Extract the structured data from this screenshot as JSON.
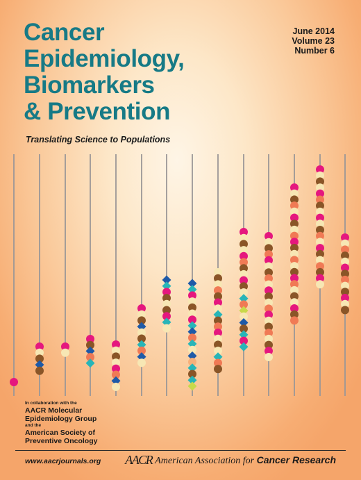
{
  "journal": {
    "title_lines": [
      "Cancer",
      "Epidemiology,",
      "Biomarkers",
      "& Prevention"
    ],
    "tagline": "Translating Science to Populations"
  },
  "issue": {
    "date": "June 2014",
    "volume": "Volume 23",
    "number": "Number 6"
  },
  "collaboration": {
    "intro": "In collaboration with the",
    "group1_line1": "AACR Molecular",
    "group1_line2": "Epidemiology Group",
    "connector": "and the",
    "group2_line1": "American Society of",
    "group2_line2": "Preventive Oncology"
  },
  "footer": {
    "website": "www.aacrjournals.org",
    "publisher_logo": "AACR",
    "publisher_prefix": "American Association for ",
    "publisher_bold": "Cancer Research"
  },
  "colors": {
    "title": "#167a86",
    "magenta": "#e5177e",
    "cream": "#f7e7b4",
    "brown": "#8a5527",
    "salmon": "#f07a55",
    "blue": "#1e5aa8",
    "teal": "#27b5b8",
    "lime": "#c8d94a",
    "peach": "#f7b07a"
  },
  "artwork": {
    "columns": [
      [
        "circle:magenta"
      ],
      [
        "circle:magenta",
        "circle:cream",
        "circle:brown",
        "diamond:blue",
        "circle:brown"
      ],
      [
        "circle:magenta",
        "circle:cream"
      ],
      [
        "circle:magenta",
        "circle:brown",
        "diamond:blue",
        "circle:salmon",
        "diamond:teal"
      ],
      [
        "circle:magenta",
        "circle:cream",
        "circle:brown",
        "circle:cream",
        "circle:magenta",
        "circle:salmon",
        "diamond:blue",
        "circle:cream"
      ],
      [
        "circle:magenta",
        "circle:cream",
        "circle:brown",
        "diamond:blue",
        "circle:cream",
        "circle:brown",
        "diamond:teal",
        "circle:salmon",
        "diamond:blue",
        "circle:cream"
      ],
      [
        "diamond:blue",
        "diamond:teal",
        "circle:magenta",
        "circle:brown",
        "circle:cream",
        "circle:brown",
        "circle:magenta",
        "diamond:teal",
        "circle:cream"
      ],
      [
        "diamond:blue",
        "diamond:teal",
        "circle:magenta",
        "circle:cream",
        "circle:brown",
        "circle:cream",
        "circle:magenta",
        "diamond:teal",
        "diamond:blue",
        "circle:salmon",
        "diamond:teal",
        "circle:cream",
        "diamond:blue",
        "circle:peach",
        "diamond:teal",
        "circle:brown",
        "diamond:teal",
        "diamond:lime"
      ],
      [
        "circle:cream",
        "circle:brown",
        "circle:cream",
        "circle:salmon",
        "circle:brown",
        "circle:magenta",
        "circle:cream",
        "diamond:teal",
        "circle:brown",
        "circle:salmon",
        "circle:magenta",
        "circle:cream",
        "circle:brown",
        "circle:cream",
        "diamond:teal",
        "circle:salmon",
        "circle:brown"
      ],
      [
        "circle:magenta",
        "circle:cream",
        "circle:brown",
        "circle:cream",
        "circle:magenta",
        "circle:salmon",
        "circle:brown",
        "circle:cream",
        "circle:magenta",
        "circle:brown",
        "circle:cream",
        "diamond:teal",
        "circle:salmon",
        "diamond:lime",
        "circle:cream",
        "diamond:blue",
        "circle:brown",
        "diamond:teal",
        "circle:magenta",
        "diamond:teal"
      ],
      [
        "circle:magenta",
        "circle:cream",
        "circle:brown",
        "circle:salmon",
        "circle:magenta",
        "circle:cream",
        "circle:brown",
        "circle:salmon",
        "circle:cream",
        "circle:magenta",
        "circle:brown",
        "circle:cream",
        "circle:salmon",
        "circle:magenta",
        "circle:cream",
        "circle:brown",
        "circle:salmon",
        "circle:cream",
        "circle:brown",
        "circle:magenta",
        "circle:cream"
      ],
      [
        "circle:magenta",
        "circle:cream",
        "circle:brown",
        "circle:salmon",
        "circle:cream",
        "circle:magenta",
        "circle:brown",
        "circle:cream",
        "circle:salmon",
        "circle:magenta",
        "circle:brown",
        "circle:cream",
        "circle:salmon",
        "circle:cream",
        "circle:brown",
        "circle:magenta",
        "circle:salmon",
        "circle:cream",
        "circle:brown",
        "circle:cream",
        "circle:magenta",
        "circle:brown",
        "circle:salmon"
      ],
      [
        "circle:magenta",
        "circle:cream",
        "circle:brown",
        "circle:cream",
        "circle:magenta",
        "circle:salmon",
        "circle:brown",
        "circle:cream",
        "circle:magenta",
        "circle:cream",
        "circle:brown",
        "circle:salmon",
        "circle:cream",
        "circle:magenta",
        "circle:brown",
        "circle:cream",
        "circle:salmon",
        "circle:brown",
        "circle:magenta",
        "circle:cream"
      ],
      [
        "circle:magenta",
        "circle:cream",
        "circle:salmon",
        "circle:brown",
        "circle:cream",
        "circle:magenta",
        "circle:brown",
        "circle:salmon",
        "circle:cream",
        "circle:brown",
        "circle:magenta",
        "circle:cream",
        "circle:brown"
      ]
    ]
  }
}
